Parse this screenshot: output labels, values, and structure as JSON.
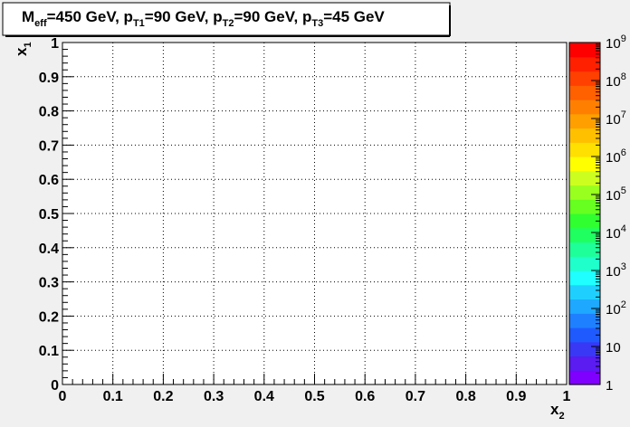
{
  "chart_data": {
    "type": "heatmap",
    "title": {
      "parts": [
        {
          "text": "M",
          "sub": "eff"
        },
        {
          "text": "=450 GeV, p",
          "sub": "T1"
        },
        {
          "text": "=90 GeV, p",
          "sub": "T2"
        },
        {
          "text": "=90 GeV, p",
          "sub": "T3"
        },
        {
          "text": "=45 GeV",
          "sub": ""
        }
      ]
    },
    "xlabel": {
      "text": "x",
      "sub": "2"
    },
    "ylabel": {
      "text": "x",
      "sub": "1"
    },
    "xlim": [
      0,
      1
    ],
    "ylim": [
      0,
      1
    ],
    "xticks": [
      "0",
      "0.1",
      "0.2",
      "0.3",
      "0.4",
      "0.5",
      "0.6",
      "0.7",
      "0.8",
      "0.9",
      "1"
    ],
    "yticks": [
      "0",
      "0.1",
      "0.2",
      "0.3",
      "0.4",
      "0.5",
      "0.6",
      "0.7",
      "0.8",
      "0.9",
      "1"
    ],
    "grid": true,
    "values": [],
    "colorbar": {
      "scale": "log",
      "zlim": [
        1,
        1000000000
      ],
      "labels": [
        {
          "base": "1",
          "exp": ""
        },
        {
          "base": "10",
          "exp": ""
        },
        {
          "base": "10",
          "exp": "2"
        },
        {
          "base": "10",
          "exp": "3"
        },
        {
          "base": "10",
          "exp": "4"
        },
        {
          "base": "10",
          "exp": "5"
        },
        {
          "base": "10",
          "exp": "6"
        },
        {
          "base": "10",
          "exp": "7"
        },
        {
          "base": "10",
          "exp": "8"
        },
        {
          "base": "10",
          "exp": "9"
        }
      ],
      "colors": [
        "#7f00ff",
        "#5a1cf0",
        "#3838f5",
        "#1f5aff",
        "#1f80ff",
        "#1fa8ff",
        "#1fd0ff",
        "#1fffff",
        "#1fffcc",
        "#1fff99",
        "#1fff60",
        "#30ff30",
        "#66ff1f",
        "#99ff1f",
        "#ccff1f",
        "#ffff00",
        "#ffe000",
        "#ffc000",
        "#ffa000",
        "#ff8000",
        "#ff6000",
        "#ff4000",
        "#ff2000",
        "#ff0000"
      ]
    }
  }
}
